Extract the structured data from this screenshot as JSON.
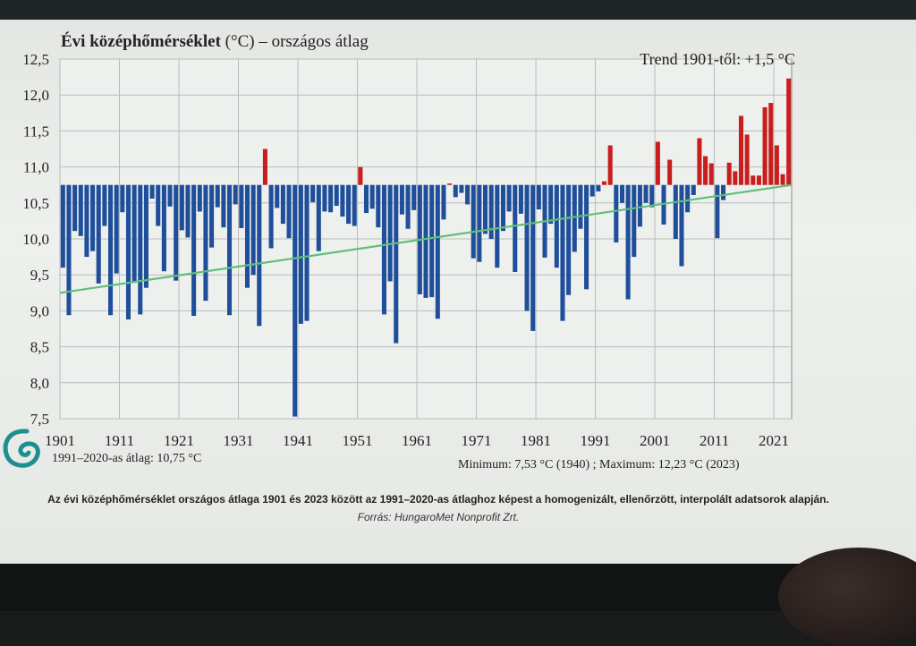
{
  "caption": "Az évi középhőmérséklet országos átlaga 1901 és 2023 között az 1991–2020-as átlaghoz képest a homogenizált, ellenőrzött, interpolált adatsorok alapján.",
  "source": "Forrás: HungaroMet Nonprofit Zrt.",
  "chart_data": {
    "type": "bar",
    "title_bold": "Évi középhőmérséklet",
    "title_rest": " (°C) – országos átlag",
    "trend_label": "Trend 1901-től: +1,5 °C",
    "baseline_label": "1991–2020-as átlag:  10,75 °C",
    "minmax_label": "Minimum:  7,53 °C (1940) ; Maximum:  12,23 °C (2023)",
    "baseline": 10.75,
    "ylim": [
      7.5,
      12.5
    ],
    "yticks": [
      "7,5",
      "8,0",
      "8,5",
      "9,0",
      "9,5",
      "10,0",
      "10,5",
      "11,0",
      "11,5",
      "12,0",
      "12,5"
    ],
    "xticks": [
      "1901",
      "1911",
      "1921",
      "1931",
      "1941",
      "1951",
      "1961",
      "1971",
      "1981",
      "1991",
      "2001",
      "2011",
      "2021"
    ],
    "x_start": 1901,
    "colors": {
      "below": "#1f4e9a",
      "above": "#c81e1e",
      "trend": "#5fbf7a",
      "grid": "#b9bcbc"
    },
    "trend": {
      "start": 9.25,
      "end": 10.75
    },
    "values": [
      9.6,
      8.94,
      10.11,
      10.04,
      9.75,
      9.83,
      9.38,
      10.18,
      8.94,
      9.52,
      10.37,
      8.88,
      9.4,
      8.95,
      9.32,
      10.56,
      10.18,
      9.55,
      10.45,
      9.42,
      10.12,
      10.02,
      8.93,
      10.38,
      9.14,
      9.88,
      10.44,
      10.16,
      8.94,
      10.48,
      10.15,
      9.32,
      9.5,
      8.79,
      11.25,
      9.87,
      10.43,
      10.21,
      10.01,
      7.53,
      8.82,
      8.86,
      10.51,
      9.83,
      10.38,
      10.37,
      10.46,
      10.31,
      10.21,
      10.18,
      11.0,
      10.36,
      10.42,
      10.16,
      8.95,
      9.41,
      8.55,
      10.34,
      10.14,
      10.4,
      9.23,
      9.18,
      9.19,
      8.89,
      10.27,
      10.77,
      10.58,
      10.64,
      10.48,
      9.73,
      9.68,
      10.07,
      10.0,
      9.6,
      10.11,
      10.38,
      9.54,
      10.35,
      9.0,
      8.72,
      10.41,
      9.74,
      10.21,
      9.6,
      8.86,
      9.22,
      9.82,
      10.14,
      9.3,
      10.59,
      10.66,
      10.8,
      11.3,
      9.95,
      10.5,
      9.16,
      9.75,
      10.17,
      10.5,
      10.44,
      11.35,
      10.2,
      11.1,
      10.0,
      9.62,
      10.37,
      10.61,
      11.4,
      11.15,
      11.05,
      10.01,
      10.54,
      11.06,
      10.94,
      11.71,
      11.45,
      10.88,
      10.88,
      11.83,
      11.89,
      11.3,
      10.9,
      12.23
    ]
  }
}
